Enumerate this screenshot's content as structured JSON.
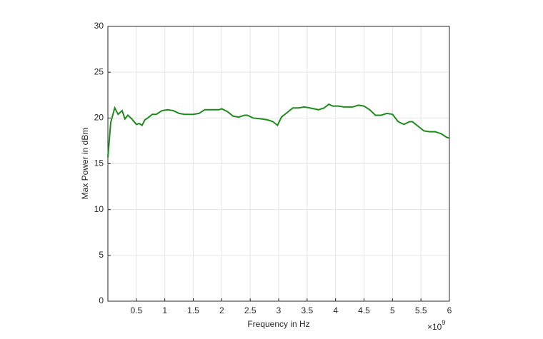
{
  "chart_data": {
    "type": "line",
    "xlabel": "Frequency in Hz",
    "ylabel": "Max Power in dBm",
    "x_multiplier": {
      "base": "×10",
      "exponent": "9"
    },
    "x": [
      0.0,
      0.05,
      0.12,
      0.18,
      0.25,
      0.3,
      0.35,
      0.42,
      0.5,
      0.55,
      0.6,
      0.65,
      0.7,
      0.78,
      0.85,
      0.95,
      1.05,
      1.15,
      1.25,
      1.35,
      1.5,
      1.6,
      1.7,
      1.85,
      1.95,
      2.0,
      2.1,
      2.2,
      2.3,
      2.4,
      2.45,
      2.55,
      2.7,
      2.8,
      2.9,
      2.98,
      3.05,
      3.15,
      3.25,
      3.35,
      3.45,
      3.55,
      3.7,
      3.8,
      3.88,
      3.95,
      4.05,
      4.15,
      4.3,
      4.4,
      4.5,
      4.6,
      4.7,
      4.8,
      4.9,
      5.0,
      5.1,
      5.2,
      5.3,
      5.35,
      5.45,
      5.55,
      5.65,
      5.75,
      5.85,
      5.95,
      6.0
    ],
    "series": [
      {
        "color": "#1e8a1e",
        "values": [
          15.7,
          19.5,
          21.1,
          20.4,
          20.8,
          19.9,
          20.3,
          19.9,
          19.3,
          19.4,
          19.2,
          19.8,
          20.0,
          20.4,
          20.4,
          20.8,
          20.9,
          20.8,
          20.5,
          20.4,
          20.4,
          20.5,
          20.9,
          20.9,
          20.9,
          21.0,
          20.7,
          20.2,
          20.1,
          20.3,
          20.3,
          20.0,
          19.9,
          19.8,
          19.6,
          19.2,
          20.1,
          20.6,
          21.1,
          21.1,
          21.2,
          21.1,
          20.9,
          21.1,
          21.5,
          21.3,
          21.3,
          21.2,
          21.2,
          21.4,
          21.3,
          20.9,
          20.3,
          20.3,
          20.5,
          20.4,
          19.6,
          19.3,
          19.6,
          19.6,
          19.1,
          18.6,
          18.5,
          18.5,
          18.3,
          17.9,
          17.8
        ]
      }
    ],
    "xlim": [
      0,
      6
    ],
    "xticks": [
      0.5,
      1,
      1.5,
      2,
      2.5,
      3,
      3.5,
      4,
      4.5,
      5,
      5.5,
      6
    ],
    "ylim": [
      0,
      30
    ],
    "yticks": [
      0,
      5,
      10,
      15,
      20,
      25,
      30
    ],
    "grid": true
  }
}
